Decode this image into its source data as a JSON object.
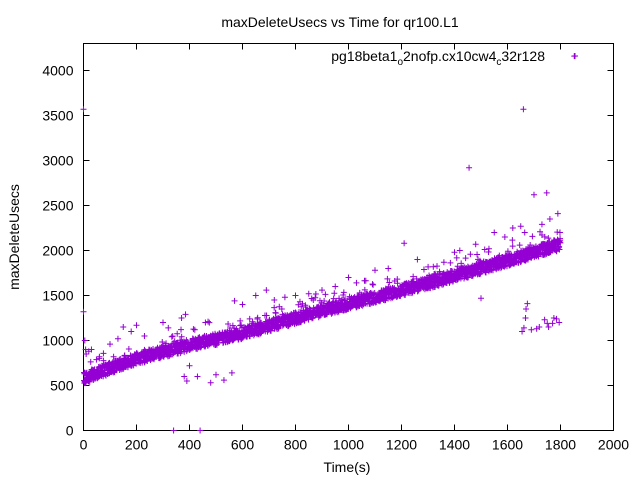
{
  "chart_data": {
    "type": "scatter",
    "title": "maxDeleteUsecs vs Time for qr100.L1",
    "xlabel": "Time(s)",
    "ylabel": "maxDeleteUsecs",
    "xlim": [
      0,
      2000
    ],
    "ylim": [
      0,
      4300
    ],
    "xticks": [
      "0",
      "200",
      "400",
      "600",
      "800",
      "1000",
      "1200",
      "1400",
      "1600",
      "1800",
      "2000"
    ],
    "yticks": [
      "0",
      "500",
      "1000",
      "1500",
      "2000",
      "2500",
      "3000",
      "3500",
      "4000"
    ],
    "grid": false,
    "legend_position": "top-right",
    "marker": "+",
    "color": "#9400d3",
    "series": [
      {
        "name": "pg18beta1_o2nofp.cx10cw4_c32r128",
        "name_parts": {
          "a": "pg18beta1",
          "b": "o",
          "c": "2nofp.cx10cw4",
          "d": "c",
          "e": "32r128"
        },
        "trend_points": [
          [
            0,
            560
          ],
          [
            200,
            780
          ],
          [
            400,
            930
          ],
          [
            600,
            1060
          ],
          [
            800,
            1230
          ],
          [
            1000,
            1390
          ],
          [
            1200,
            1540
          ],
          [
            1400,
            1700
          ],
          [
            1600,
            1870
          ],
          [
            1800,
            2050
          ]
        ],
        "outliers": [
          [
            0,
            3570
          ],
          [
            0,
            1320
          ],
          [
            5,
            1000
          ],
          [
            8,
            900
          ],
          [
            10,
            850
          ],
          [
            20,
            880
          ],
          [
            30,
            900
          ],
          [
            60,
            820
          ],
          [
            100,
            960
          ],
          [
            130,
            1020
          ],
          [
            150,
            1150
          ],
          [
            180,
            1100
          ],
          [
            200,
            1170
          ],
          [
            230,
            1050
          ],
          [
            300,
            1200
          ],
          [
            320,
            1140
          ],
          [
            340,
            0
          ],
          [
            370,
            1250
          ],
          [
            380,
            600
          ],
          [
            385,
            1290
          ],
          [
            390,
            550
          ],
          [
            400,
            720
          ],
          [
            420,
            1120
          ],
          [
            430,
            600
          ],
          [
            440,
            0
          ],
          [
            460,
            1200
          ],
          [
            470,
            1210
          ],
          [
            480,
            530
          ],
          [
            500,
            620
          ],
          [
            530,
            560
          ],
          [
            560,
            640
          ],
          [
            570,
            1440
          ],
          [
            600,
            1400
          ],
          [
            650,
            1500
          ],
          [
            690,
            1560
          ],
          [
            720,
            1450
          ],
          [
            760,
            1480
          ],
          [
            800,
            1500
          ],
          [
            850,
            1520
          ],
          [
            900,
            1560
          ],
          [
            950,
            1600
          ],
          [
            1000,
            1700
          ],
          [
            1030,
            1640
          ],
          [
            1100,
            1780
          ],
          [
            1150,
            1800
          ],
          [
            1210,
            2080
          ],
          [
            1260,
            1900
          ],
          [
            1320,
            1820
          ],
          [
            1360,
            1870
          ],
          [
            1400,
            1980
          ],
          [
            1420,
            2000
          ],
          [
            1455,
            2920
          ],
          [
            1480,
            2070
          ],
          [
            1500,
            1470
          ],
          [
            1530,
            2020
          ],
          [
            1550,
            2200
          ],
          [
            1590,
            2150
          ],
          [
            1620,
            2250
          ],
          [
            1650,
            2270
          ],
          [
            1660,
            3570
          ],
          [
            1665,
            2200
          ],
          [
            1655,
            1100
          ],
          [
            1662,
            1140
          ],
          [
            1668,
            1250
          ],
          [
            1670,
            1350
          ],
          [
            1675,
            1410
          ],
          [
            1690,
            1120
          ],
          [
            1700,
            2620
          ],
          [
            1710,
            1130
          ],
          [
            1720,
            1150
          ],
          [
            1730,
            2290
          ],
          [
            1740,
            1230
          ],
          [
            1748,
            2640
          ],
          [
            1750,
            1190
          ],
          [
            1755,
            1150
          ],
          [
            1760,
            2350
          ],
          [
            1770,
            1190
          ],
          [
            1775,
            1250
          ],
          [
            1785,
            1240
          ],
          [
            1790,
            2410
          ],
          [
            1795,
            1200
          ],
          [
            1798,
            2200
          ],
          [
            1852,
            4160
          ]
        ]
      }
    ]
  }
}
